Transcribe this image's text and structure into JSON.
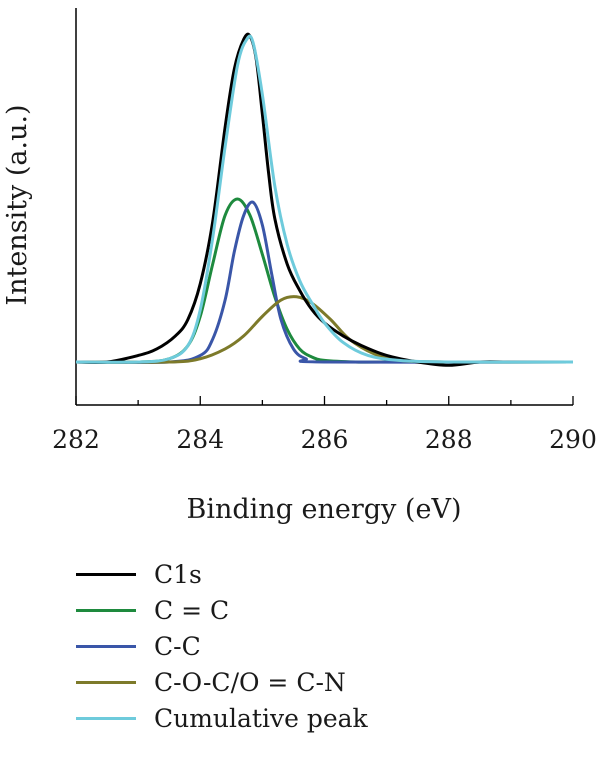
{
  "chart_data": {
    "type": "line",
    "xlabel": "Binding energy (eV)",
    "ylabel": "Intensity (a.u.)",
    "xlim": [
      282,
      290
    ],
    "ylim": [
      -0.16,
      1.0
    ],
    "xticks": [
      "282",
      "284",
      "286",
      "288",
      "290"
    ],
    "grid": false,
    "legend_position": "bottom",
    "series": [
      {
        "name": "C1s",
        "color": "#000000",
        "x": [
          282.0,
          282.5,
          283.0,
          283.3,
          283.6,
          283.8,
          284.0,
          284.2,
          284.4,
          284.55,
          284.7,
          284.8,
          284.9,
          285.0,
          285.1,
          285.2,
          285.4,
          285.6,
          285.8,
          286.0,
          286.3,
          286.6,
          287.0,
          287.5,
          288.0,
          288.5,
          289.0,
          290.0
        ],
        "y": [
          0.0,
          0.0,
          0.02,
          0.04,
          0.08,
          0.13,
          0.24,
          0.43,
          0.72,
          0.9,
          0.99,
          1.0,
          0.93,
          0.76,
          0.58,
          0.44,
          0.3,
          0.22,
          0.16,
          0.12,
          0.08,
          0.05,
          0.02,
          0.0,
          -0.01,
          0.0,
          0.0,
          0.0
        ]
      },
      {
        "name": "C = C",
        "color": "#1e8a3e",
        "x": [
          282.0,
          283.0,
          283.5,
          283.8,
          284.0,
          284.2,
          284.4,
          284.6,
          284.8,
          285.0,
          285.2,
          285.4,
          285.6,
          285.8,
          286.0,
          286.5,
          287.0,
          290.0
        ],
        "y": [
          0.0,
          0.0,
          0.01,
          0.05,
          0.14,
          0.3,
          0.45,
          0.5,
          0.45,
          0.33,
          0.2,
          0.1,
          0.04,
          0.015,
          0.005,
          0.0,
          0.0,
          0.0
        ]
      },
      {
        "name": "C-C",
        "color": "#3a56a8",
        "x": [
          282.0,
          283.5,
          284.0,
          284.2,
          284.4,
          284.55,
          284.7,
          284.85,
          285.0,
          285.15,
          285.3,
          285.5,
          285.7,
          286.0,
          290.0
        ],
        "y": [
          0.0,
          0.0,
          0.02,
          0.07,
          0.19,
          0.34,
          0.45,
          0.49,
          0.42,
          0.27,
          0.13,
          0.04,
          0.01,
          0.0,
          0.0
        ]
      },
      {
        "name": "C-O-C/O = C-N",
        "color": "#7d7a2a",
        "x": [
          282.0,
          283.5,
          284.0,
          284.4,
          284.7,
          285.0,
          285.3,
          285.55,
          285.8,
          286.1,
          286.4,
          286.8,
          287.2,
          288.0,
          290.0
        ],
        "y": [
          0.0,
          0.0,
          0.01,
          0.04,
          0.08,
          0.14,
          0.19,
          0.2,
          0.18,
          0.13,
          0.07,
          0.025,
          0.005,
          0.0,
          0.0
        ]
      },
      {
        "name": "Cumulative peak",
        "color": "#6ecbdc",
        "x": [
          282.0,
          283.0,
          283.5,
          283.8,
          284.0,
          284.2,
          284.4,
          284.6,
          284.75,
          284.85,
          285.0,
          285.2,
          285.4,
          285.6,
          285.8,
          286.0,
          286.3,
          286.7,
          287.2,
          288.0,
          290.0
        ],
        "y": [
          0.0,
          0.0,
          0.01,
          0.05,
          0.16,
          0.38,
          0.66,
          0.91,
          0.99,
          0.98,
          0.82,
          0.54,
          0.36,
          0.25,
          0.18,
          0.12,
          0.06,
          0.02,
          0.005,
          0.0,
          0.0
        ]
      }
    ]
  }
}
